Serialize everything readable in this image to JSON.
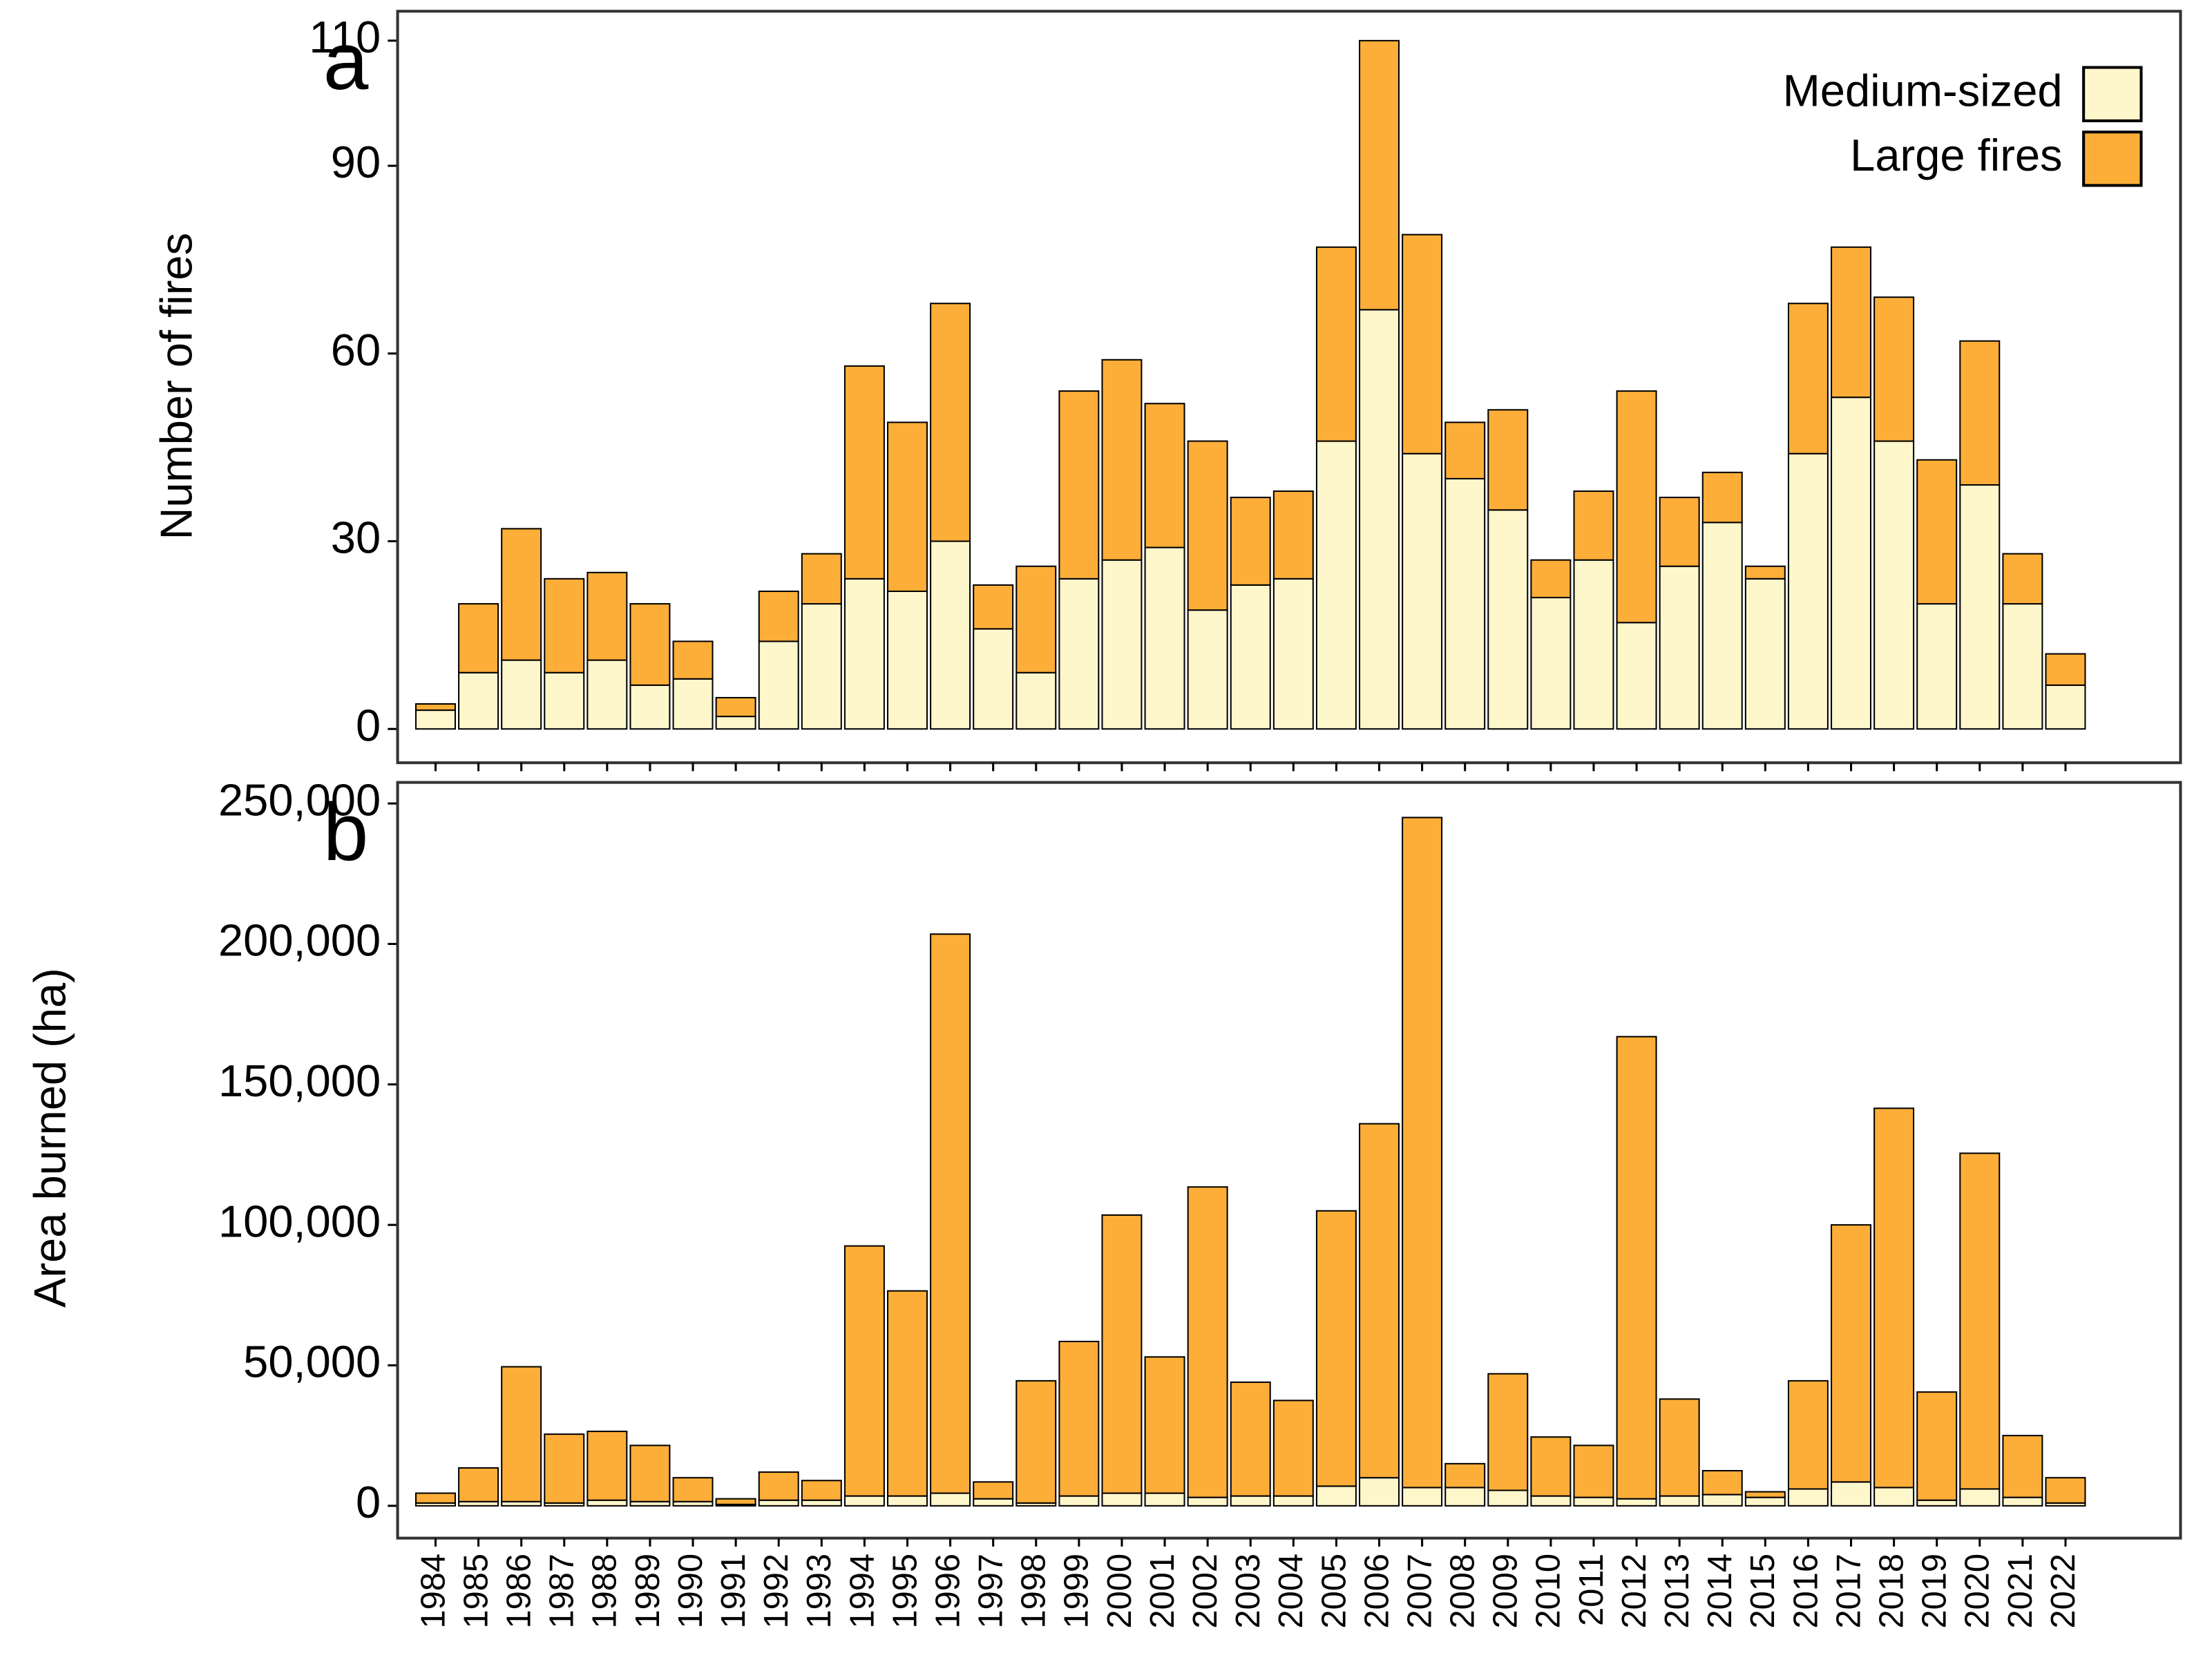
{
  "chart_data": [
    {
      "type": "bar",
      "stacked": true,
      "panel_label": "a",
      "y_label": "Number of fires",
      "legend": "top-right",
      "ylim": [
        -5.4,
        114.7
      ],
      "yticks": [
        0,
        30,
        60,
        90,
        110
      ],
      "series": [
        {
          "name": "Medium-sized",
          "color": "#fef7cb",
          "values": [
            3,
            9,
            11,
            9,
            11,
            7,
            8,
            2,
            14,
            20,
            24,
            22,
            30,
            16,
            9,
            24,
            27,
            29,
            19,
            23,
            24,
            46,
            67,
            44,
            40,
            35,
            21,
            27,
            17,
            26,
            33,
            24,
            44,
            53,
            46,
            20,
            39,
            20,
            7
          ]
        },
        {
          "name": "Large fires",
          "color": "#fdae38",
          "values": [
            1,
            11,
            21,
            15,
            14,
            13,
            6,
            3,
            8,
            8,
            34,
            27,
            38,
            7,
            17,
            30,
            32,
            23,
            27,
            14,
            14,
            31,
            43,
            35,
            9,
            16,
            6,
            11,
            37,
            11,
            8,
            2,
            24,
            24,
            23,
            23,
            23,
            8,
            5
          ]
        }
      ]
    },
    {
      "type": "bar",
      "stacked": true,
      "panel_label": "b",
      "y_label": "Area burned (ha)",
      "categories": [
        "1984",
        "1985",
        "1986",
        "1987",
        "1988",
        "1989",
        "1990",
        "1991",
        "1992",
        "1993",
        "1994",
        "1995",
        "1996",
        "1997",
        "1998",
        "1999",
        "2000",
        "2001",
        "2002",
        "2003",
        "2004",
        "2005",
        "2006",
        "2007",
        "2008",
        "2009",
        "2010",
        "2011",
        "2012",
        "2013",
        "2014",
        "2015",
        "2016",
        "2017",
        "2018",
        "2019",
        "2020",
        "2021",
        "2022"
      ],
      "ylim": [
        -11500,
        257500
      ],
      "yticks": [
        0,
        {
          "value": 50000,
          "label": "50,000"
        },
        {
          "value": 100000,
          "label": "100,000"
        },
        {
          "value": 150000,
          "label": "150,000"
        },
        {
          "value": 200000,
          "label": "200,000"
        },
        {
          "value": 250000,
          "label": "250,000"
        }
      ],
      "series": [
        {
          "name": "Medium-sized",
          "color": "#fef7cb",
          "values": [
            1000,
            1500,
            1500,
            1000,
            2000,
            1500,
            1500,
            500,
            2000,
            2000,
            3500,
            3500,
            4500,
            2500,
            1000,
            3500,
            4500,
            4500,
            3000,
            3500,
            3500,
            7000,
            10000,
            6500,
            6500,
            5500,
            3500,
            3000,
            2500,
            3500,
            4000,
            3000,
            6000,
            8500,
            6500,
            2000,
            6000,
            3000,
            1000
          ]
        },
        {
          "name": "Large fires",
          "color": "#fdae38",
          "values": [
            3500,
            12000,
            48000,
            24500,
            24500,
            20000,
            8500,
            2000,
            10000,
            7000,
            89000,
            73000,
            199000,
            6000,
            43500,
            55000,
            99000,
            48500,
            110500,
            40500,
            34000,
            98000,
            126000,
            238500,
            8500,
            41500,
            21000,
            18500,
            164500,
            34500,
            8500,
            2000,
            38500,
            91500,
            135000,
            38500,
            119500,
            22000,
            9000
          ]
        }
      ]
    }
  ]
}
